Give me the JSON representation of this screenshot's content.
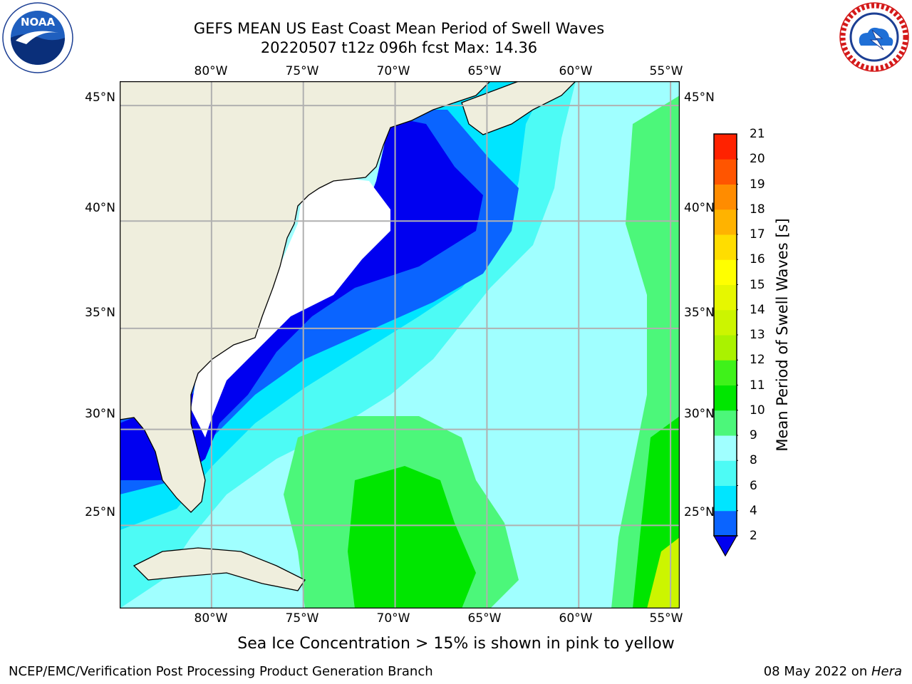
{
  "header": {
    "title_line1": "GEFS MEAN US East Coast Mean Period of Swell Waves",
    "title_line2": "20220507 t12z 096h fcst   Max: 14.36"
  },
  "logos": {
    "left": "noaa-logo",
    "right": "nws-logo"
  },
  "map": {
    "lon_labels": [
      "80°W",
      "75°W",
      "70°W",
      "65°W",
      "60°W",
      "55°W"
    ],
    "lat_labels": [
      "45°N",
      "40°N",
      "35°N",
      "30°N",
      "25°N"
    ],
    "lon_values": [
      -80,
      -75,
      -70,
      -65,
      -60,
      -55
    ],
    "lat_values": [
      45,
      40,
      35,
      30,
      25
    ],
    "lon_range": [
      -85,
      -54.5
    ],
    "lat_range": [
      20.5,
      46
    ],
    "land_color": "#efeedd",
    "grid_color": "#b0b0b0",
    "no_data_color": "#ffffff"
  },
  "colorbar": {
    "title": "Mean Period of Swell Waves [s]",
    "levels": [
      "2",
      "4",
      "6",
      "8",
      "9",
      "10",
      "11",
      "12",
      "13",
      "14",
      "15",
      "16",
      "17",
      "18",
      "19",
      "20",
      "21"
    ],
    "colors": [
      "#0a64ff",
      "#00e5ff",
      "#4dfbf5",
      "#a0ffff",
      "#4cf77a",
      "#00e600",
      "#3ff21a",
      "#aaf200",
      "#ccf500",
      "#e6f700",
      "#ffff00",
      "#ffdd00",
      "#ffb300",
      "#ff8c00",
      "#ff5500",
      "#ff2200"
    ],
    "under_color": "#0000f0"
  },
  "note": "Sea Ice Concentration > 15% is shown in pink to yellow",
  "footer": {
    "left": "NCEP/EMC/Verification Post Processing Product Generation Branch",
    "date": "08 May 2022 on ",
    "machine": "Hera"
  }
}
